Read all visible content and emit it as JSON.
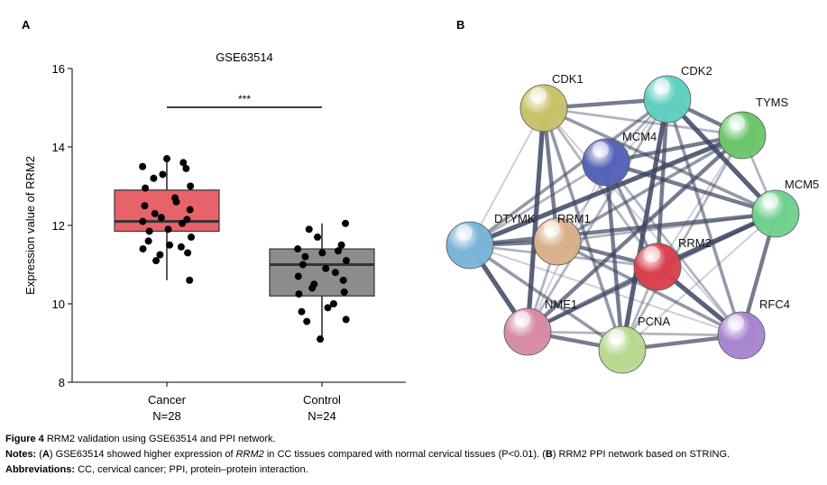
{
  "panel_labels": [
    "A",
    "B"
  ],
  "chart_data": {
    "type": "box",
    "title": "GSE63514",
    "ylabel": "Expression value of RRM2",
    "categories": [
      "Cancer",
      "Control"
    ],
    "group_sizes": [
      "N=28",
      "N=24"
    ],
    "ylim": [
      8,
      16
    ],
    "yticks": [
      8,
      10,
      12,
      14,
      16
    ],
    "significance": "***",
    "series": [
      {
        "name": "Cancer",
        "color": "#e8626a",
        "q1": 11.85,
        "median": 12.1,
        "q3": 12.9,
        "min": 10.6,
        "max": 13.7,
        "points": [
          13.7,
          13.6,
          13.5,
          13.45,
          13.3,
          13.2,
          13.0,
          12.95,
          12.7,
          12.6,
          12.5,
          12.4,
          12.3,
          12.2,
          12.15,
          12.1,
          12.05,
          11.9,
          11.85,
          11.7,
          11.6,
          11.5,
          11.45,
          11.4,
          11.3,
          11.25,
          11.1,
          10.6
        ]
      },
      {
        "name": "Control",
        "color": "#8c8c8c",
        "q1": 10.2,
        "median": 11.0,
        "q3": 11.4,
        "min": 9.1,
        "max": 12.05,
        "points": [
          12.05,
          11.9,
          11.7,
          11.5,
          11.4,
          11.35,
          11.3,
          11.2,
          11.1,
          11.0,
          10.9,
          10.8,
          10.7,
          10.6,
          10.5,
          10.4,
          10.3,
          10.25,
          10.0,
          9.9,
          9.8,
          9.6,
          9.55,
          9.1
        ]
      }
    ]
  },
  "network": {
    "nodes": [
      {
        "label": "CDK1",
        "color": "#c8c26a"
      },
      {
        "label": "CDK2",
        "color": "#5fcfc0"
      },
      {
        "label": "TYMS",
        "color": "#6cc56a"
      },
      {
        "label": "MCM4",
        "color": "#5563b8"
      },
      {
        "label": "MCM5",
        "color": "#6fd08f"
      },
      {
        "label": "DTYMK",
        "color": "#7ab4d8"
      },
      {
        "label": "RRM1",
        "color": "#d8b08a"
      },
      {
        "label": "RRM2",
        "color": "#d8404e"
      },
      {
        "label": "NME1",
        "color": "#d68aa6"
      },
      {
        "label": "PCNA",
        "color": "#b8d890"
      },
      {
        "label": "RFC4",
        "color": "#a884d0"
      }
    ]
  },
  "caption": {
    "figure_label": "Figure 4",
    "figure_text": "RRM2 validation using GSE63514 and PPI network.",
    "notes_label": "Notes:",
    "notes_parts": [
      " (",
      "A",
      ") GSE63514 showed higher expression of ",
      "RRM2",
      " in CC tissues compared with normal cervical tissues (P<0.01). (",
      "B",
      ") RRM2 PPI network based on STRING."
    ],
    "abbreviations_label": "Abbreviations:",
    "abbreviations_text": "CC, cervical cancer; PPI, protein–protein interaction."
  }
}
